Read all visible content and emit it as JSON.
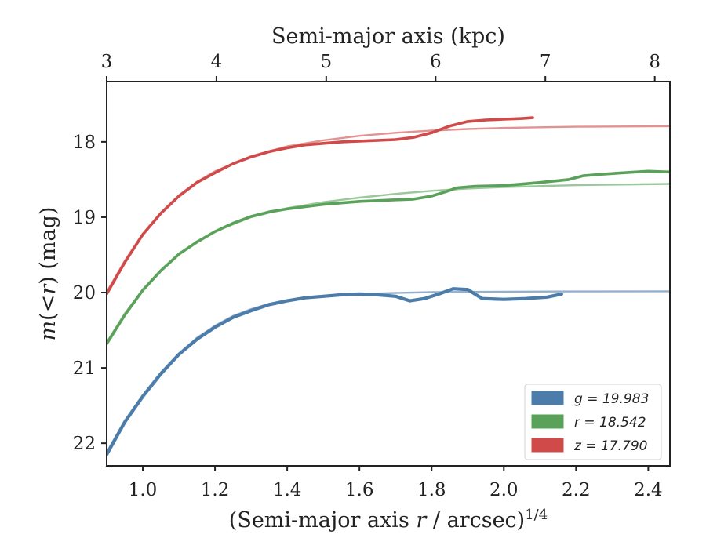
{
  "chart_data": {
    "type": "line",
    "xlabel_main": "(Semi-major axis",
    "xlabel_var": "r",
    "xlabel_rest": "/ arcsec)",
    "xlabel_sup": "1/4",
    "xlabel_top": "Semi-major axis (kpc)",
    "ylabel_m": "m",
    "ylabel_mid": "(<",
    "ylabel_r": "r",
    "ylabel_rest": ") (mag)",
    "xlim": [
      0.9,
      2.46
    ],
    "ylim": [
      22.3,
      17.2
    ],
    "x_ticks": [
      1.0,
      1.2,
      1.4,
      1.6,
      1.8,
      2.0,
      2.2,
      2.4
    ],
    "x_tick_labels": [
      "1.0",
      "1.2",
      "1.4",
      "1.6",
      "1.8",
      "2.0",
      "2.2",
      "2.4"
    ],
    "y_ticks": [
      18,
      19,
      20,
      21,
      22
    ],
    "y_tick_labels": [
      "18",
      "19",
      "20",
      "21",
      "22"
    ],
    "top_ticks": [
      3,
      4,
      5,
      6,
      7,
      8
    ],
    "top_tick_labels": [
      "3",
      "4",
      "5",
      "6",
      "7",
      "8"
    ],
    "top_tick_x": [
      0.9,
      1.204,
      1.508,
      1.811,
      2.115,
      2.418
    ],
    "grid": false,
    "legend_position": "bottom-right",
    "series": [
      {
        "name": "g = 19.983",
        "color": "#4c7caa",
        "data": [
          [
            0.9,
            22.15
          ],
          [
            0.95,
            21.72
          ],
          [
            1.0,
            21.38
          ],
          [
            1.05,
            21.08
          ],
          [
            1.1,
            20.82
          ],
          [
            1.15,
            20.62
          ],
          [
            1.2,
            20.46
          ],
          [
            1.25,
            20.33
          ],
          [
            1.3,
            20.24
          ],
          [
            1.35,
            20.16
          ],
          [
            1.4,
            20.11
          ],
          [
            1.45,
            20.07
          ],
          [
            1.5,
            20.05
          ],
          [
            1.55,
            20.03
          ],
          [
            1.6,
            20.02
          ],
          [
            1.65,
            20.03
          ],
          [
            1.7,
            20.05
          ],
          [
            1.74,
            20.11
          ],
          [
            1.78,
            20.08
          ],
          [
            1.82,
            20.02
          ],
          [
            1.86,
            19.95
          ],
          [
            1.9,
            19.96
          ],
          [
            1.94,
            20.08
          ],
          [
            2.0,
            20.09
          ],
          [
            2.06,
            20.08
          ],
          [
            2.12,
            20.06
          ],
          [
            2.16,
            20.02
          ]
        ],
        "fit": [
          [
            0.9,
            22.12
          ],
          [
            0.95,
            21.7
          ],
          [
            1.0,
            21.36
          ],
          [
            1.05,
            21.06
          ],
          [
            1.1,
            20.81
          ],
          [
            1.15,
            20.6
          ],
          [
            1.2,
            20.44
          ],
          [
            1.25,
            20.31
          ],
          [
            1.3,
            20.22
          ],
          [
            1.35,
            20.15
          ],
          [
            1.4,
            20.1
          ],
          [
            1.5,
            20.05
          ],
          [
            1.6,
            20.02
          ],
          [
            1.7,
            20.005
          ],
          [
            1.8,
            19.995
          ],
          [
            2.0,
            19.988
          ],
          [
            2.2,
            19.985
          ],
          [
            2.46,
            19.983
          ]
        ]
      },
      {
        "name": "r = 18.542",
        "color": "#5aa25a",
        "data": [
          [
            0.9,
            20.68
          ],
          [
            0.95,
            20.3
          ],
          [
            1.0,
            19.97
          ],
          [
            1.05,
            19.71
          ],
          [
            1.1,
            19.49
          ],
          [
            1.15,
            19.33
          ],
          [
            1.2,
            19.19
          ],
          [
            1.25,
            19.08
          ],
          [
            1.3,
            18.99
          ],
          [
            1.35,
            18.93
          ],
          [
            1.4,
            18.89
          ],
          [
            1.45,
            18.86
          ],
          [
            1.5,
            18.83
          ],
          [
            1.55,
            18.81
          ],
          [
            1.6,
            18.79
          ],
          [
            1.65,
            18.78
          ],
          [
            1.7,
            18.77
          ],
          [
            1.75,
            18.76
          ],
          [
            1.8,
            18.72
          ],
          [
            1.84,
            18.66
          ],
          [
            1.87,
            18.61
          ],
          [
            1.92,
            18.59
          ],
          [
            2.0,
            18.58
          ],
          [
            2.05,
            18.56
          ],
          [
            2.1,
            18.54
          ],
          [
            2.18,
            18.5
          ],
          [
            2.22,
            18.45
          ],
          [
            2.27,
            18.43
          ],
          [
            2.33,
            18.41
          ],
          [
            2.4,
            18.39
          ],
          [
            2.46,
            18.4
          ]
        ],
        "fit": [
          [
            0.9,
            20.66
          ],
          [
            0.95,
            20.28
          ],
          [
            1.0,
            19.96
          ],
          [
            1.05,
            19.7
          ],
          [
            1.1,
            19.49
          ],
          [
            1.15,
            19.32
          ],
          [
            1.2,
            19.19
          ],
          [
            1.3,
            19.0
          ],
          [
            1.4,
            18.88
          ],
          [
            1.5,
            18.8
          ],
          [
            1.6,
            18.74
          ],
          [
            1.7,
            18.69
          ],
          [
            1.8,
            18.65
          ],
          [
            1.9,
            18.62
          ],
          [
            2.0,
            18.6
          ],
          [
            2.2,
            18.575
          ],
          [
            2.46,
            18.558
          ]
        ]
      },
      {
        "name": "z = 17.790",
        "color": "#d04a4a",
        "data": [
          [
            0.9,
            20.02
          ],
          [
            0.95,
            19.6
          ],
          [
            1.0,
            19.23
          ],
          [
            1.05,
            18.95
          ],
          [
            1.1,
            18.72
          ],
          [
            1.15,
            18.54
          ],
          [
            1.2,
            18.41
          ],
          [
            1.25,
            18.29
          ],
          [
            1.3,
            18.2
          ],
          [
            1.35,
            18.13
          ],
          [
            1.4,
            18.08
          ],
          [
            1.45,
            18.04
          ],
          [
            1.5,
            18.02
          ],
          [
            1.55,
            18.0
          ],
          [
            1.6,
            17.99
          ],
          [
            1.7,
            17.97
          ],
          [
            1.75,
            17.94
          ],
          [
            1.8,
            17.88
          ],
          [
            1.85,
            17.79
          ],
          [
            1.9,
            17.73
          ],
          [
            1.95,
            17.71
          ],
          [
            2.0,
            17.7
          ],
          [
            2.05,
            17.69
          ],
          [
            2.08,
            17.68
          ]
        ],
        "fit": [
          [
            0.9,
            19.99
          ],
          [
            0.95,
            19.58
          ],
          [
            1.0,
            19.22
          ],
          [
            1.05,
            18.94
          ],
          [
            1.1,
            18.71
          ],
          [
            1.15,
            18.53
          ],
          [
            1.2,
            18.39
          ],
          [
            1.3,
            18.19
          ],
          [
            1.4,
            18.06
          ],
          [
            1.5,
            17.98
          ],
          [
            1.6,
            17.92
          ],
          [
            1.7,
            17.88
          ],
          [
            1.8,
            17.85
          ],
          [
            1.9,
            17.83
          ],
          [
            2.0,
            17.815
          ],
          [
            2.2,
            17.8
          ],
          [
            2.46,
            17.792
          ]
        ]
      }
    ],
    "legend": [
      {
        "var": "g",
        "rest": " = 19.983",
        "color": "#4c7caa"
      },
      {
        "var": "r",
        "rest": " = 18.542",
        "color": "#5aa25a"
      },
      {
        "var": "z",
        "rest": " = 17.790",
        "color": "#d04a4a"
      }
    ]
  }
}
